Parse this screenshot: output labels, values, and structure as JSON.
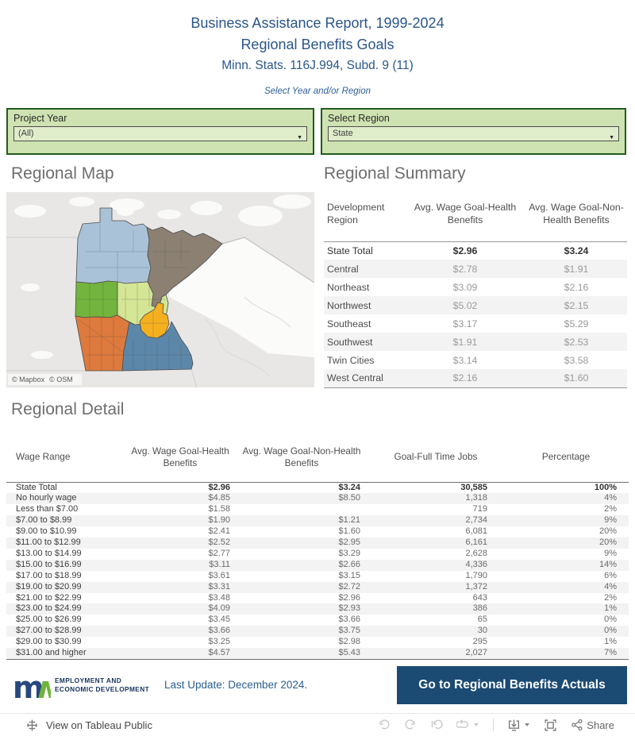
{
  "header": {
    "title1": "Business Assistance Report, 1999-2024",
    "title2": "Regional Benefits Goals",
    "statute": "Minn. Stats.  116J.994, Subd. 9 (11)",
    "instruction": "Select Year and/or Region"
  },
  "filters": {
    "year": {
      "label": "Project Year",
      "value": "(All)"
    },
    "region": {
      "label": "Select Region",
      "value": "State"
    }
  },
  "map": {
    "title": "Regional Map",
    "attribution_mapbox": "© Mapbox",
    "attribution_osm": "© OSM",
    "regions": [
      {
        "name": "Northwest",
        "color": "#a9c2d8"
      },
      {
        "name": "Northeast",
        "color": "#8c8073"
      },
      {
        "name": "Central",
        "color": "#d4e695"
      },
      {
        "name": "West Central",
        "color": "#72b43d"
      },
      {
        "name": "Southwest",
        "color": "#de7a3d"
      },
      {
        "name": "Southeast",
        "color": "#5c87a9"
      },
      {
        "name": "Twin Cities",
        "color": "#f4b01e"
      }
    ]
  },
  "summary": {
    "title": "Regional Summary",
    "columns": [
      "Development Region",
      "Avg. Wage Goal-Health Benefits",
      "Avg. Wage Goal-Non-Health Benefits"
    ],
    "rows": [
      [
        "State Total",
        "$2.96",
        "$3.24"
      ],
      [
        "Central",
        "$2.78",
        "$1.91"
      ],
      [
        "Northeast",
        "$3.09",
        "$2.16"
      ],
      [
        "Northwest",
        "$5.02",
        "$2.15"
      ],
      [
        "Southeast",
        "$3.17",
        "$5.29"
      ],
      [
        "Southwest",
        "$1.91",
        "$2.53"
      ],
      [
        "Twin Cities",
        "$3.14",
        "$3.58"
      ],
      [
        "West Central",
        "$2.16",
        "$1.60"
      ]
    ]
  },
  "detail": {
    "title": "Regional Detail",
    "columns": [
      "Wage Range",
      "Avg. Wage Goal-Health Benefits",
      "Avg. Wage Goal-Non-Health Benefits",
      "Goal-Full Time Jobs",
      "Percentage"
    ],
    "rows": [
      [
        "State Total",
        "$2.96",
        "$3.24",
        "30,585",
        "100%"
      ],
      [
        "No hourly wage",
        "$4.85",
        "$8.50",
        "1,318",
        "4%"
      ],
      [
        "Less than $7.00",
        "$1.58",
        "",
        "719",
        "2%"
      ],
      [
        "$7.00 to $8.99",
        "$1.90",
        "$1.21",
        "2,734",
        "9%"
      ],
      [
        "$9.00 to $10.99",
        "$2.41",
        "$1.60",
        "6,081",
        "20%"
      ],
      [
        "$11.00 to $12.99",
        "$2.52",
        "$2.95",
        "6,161",
        "20%"
      ],
      [
        "$13.00 to $14.99",
        "$2.77",
        "$3.29",
        "2,628",
        "9%"
      ],
      [
        "$15.00 to $16.99",
        "$3.11",
        "$2.66",
        "4,336",
        "14%"
      ],
      [
        "$17.00 to $18.99",
        "$3.61",
        "$3.15",
        "1,790",
        "6%"
      ],
      [
        "$19.00 to $20.99",
        "$3.31",
        "$2.72",
        "1,372",
        "4%"
      ],
      [
        "$21.00 to $22.99",
        "$3.48",
        "$2.96",
        "643",
        "2%"
      ],
      [
        "$23.00 to $24.99",
        "$4.09",
        "$2.93",
        "386",
        "1%"
      ],
      [
        "$25.00 to $26.99",
        "$3.45",
        "$3.66",
        "65",
        "0%"
      ],
      [
        "$27.00 to $28.99",
        "$3.66",
        "$3.75",
        "30",
        "0%"
      ],
      [
        "$29.00 to $30.99",
        "$3.25",
        "$2.98",
        "295",
        "1%"
      ],
      [
        "$31.00 and higher",
        "$4.57",
        "$5.43",
        "2,027",
        "7%"
      ]
    ]
  },
  "footer": {
    "agency_line1": "EMPLOYMENT AND",
    "agency_line2": "ECONOMIC DEVELOPMENT",
    "last_update": "Last Update: December 2024.",
    "button_label": "Go to Regional Benefits Actuals",
    "button_color": "#1b4a73",
    "logo_blue": "#27477e",
    "logo_green": "#6fb43c"
  },
  "toolbar": {
    "view_text": "View on Tableau Public",
    "share_label": "Share"
  }
}
